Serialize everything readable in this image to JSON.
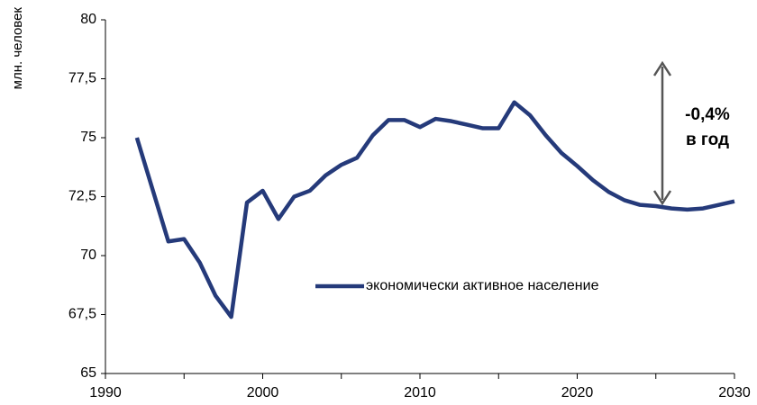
{
  "chart_data": {
    "type": "line",
    "y_label": "млн. человек",
    "x": [
      1992,
      1993,
      1994,
      1995,
      1996,
      1997,
      1998,
      1999,
      2000,
      2001,
      2002,
      2003,
      2004,
      2005,
      2006,
      2007,
      2008,
      2009,
      2010,
      2011,
      2012,
      2013,
      2014,
      2015,
      2016,
      2017,
      2018,
      2019,
      2020,
      2021,
      2022,
      2023,
      2024,
      2025,
      2026,
      2027,
      2028,
      2029,
      2030
    ],
    "series": [
      {
        "name": "экономически активное население",
        "color": "#253a7a",
        "values": [
          75.0,
          72.8,
          70.6,
          70.7,
          69.7,
          68.3,
          67.4,
          72.25,
          72.75,
          71.55,
          72.5,
          72.75,
          73.4,
          73.85,
          74.15,
          75.1,
          75.75,
          75.75,
          75.45,
          75.8,
          75.7,
          75.55,
          75.4,
          75.4,
          76.5,
          75.95,
          75.1,
          74.35,
          73.8,
          73.2,
          72.7,
          72.35,
          72.15,
          72.1,
          72.0,
          71.95,
          72.0,
          72.15,
          72.3
        ]
      }
    ],
    "xlim": [
      1990,
      2030
    ],
    "xticks": [
      1990,
      2000,
      2010,
      2020,
      2030
    ],
    "xminorticks": [
      1995,
      2005,
      2015,
      2025
    ],
    "ylim": [
      65,
      80
    ],
    "yticks": [
      65,
      {
        "value": 67.5,
        "label": "67,5"
      },
      70,
      {
        "value": 72.5,
        "label": "72,5"
      },
      75,
      {
        "value": 77.5,
        "label": "77,5"
      },
      80
    ],
    "annotation": [
      "-0,4%",
      "в год"
    ],
    "legend": "center",
    "grid": false
  }
}
